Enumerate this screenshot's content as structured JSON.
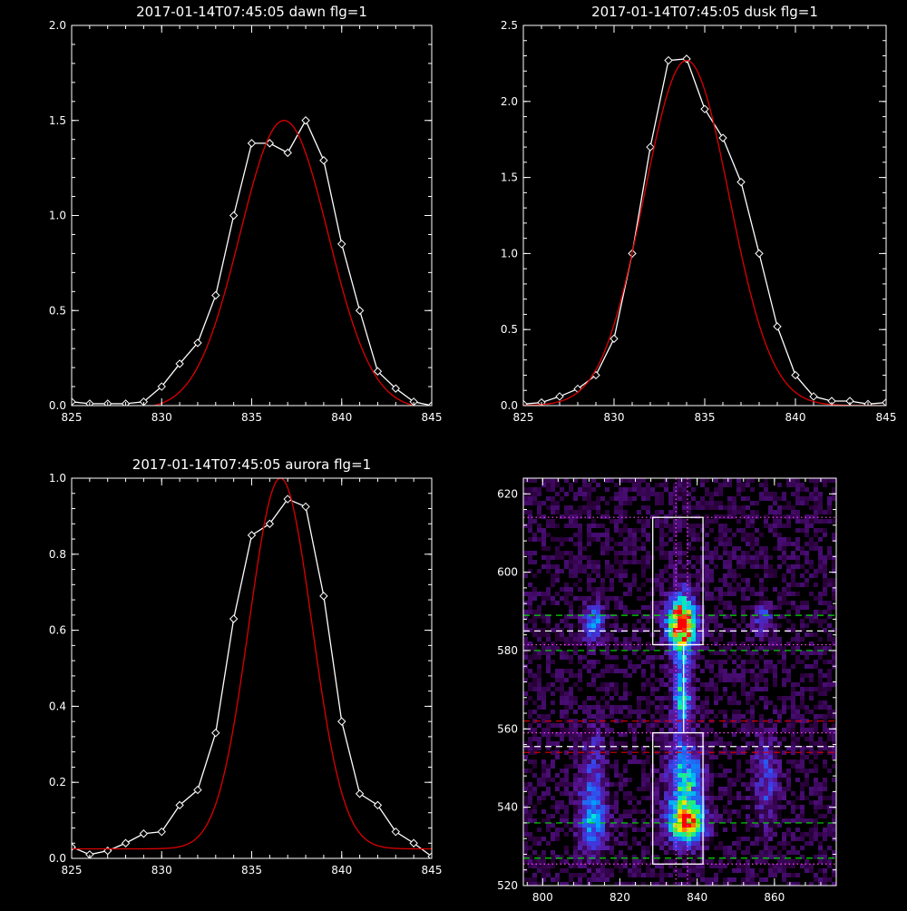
{
  "chart_data": [
    {
      "type": "line",
      "title": "2017-01-14T07:45:05 dawn flg=1",
      "xlim": [
        825,
        845
      ],
      "ylim": [
        0,
        2.0
      ],
      "xticks": [
        "825",
        "830",
        "835",
        "840",
        "845"
      ],
      "yticks": [
        "0.0",
        "0.5",
        "1.0",
        "1.5",
        "2.0"
      ],
      "grid": false,
      "series": [
        {
          "color": "#ffffff",
          "marker": "diamond",
          "x": [
            825,
            826,
            827,
            828,
            829,
            830,
            831,
            832,
            833,
            834,
            835,
            836,
            837,
            838,
            839,
            840,
            841,
            842,
            843,
            844,
            845
          ],
          "y": [
            0.02,
            0.01,
            0.01,
            0.01,
            0.02,
            0.1,
            0.22,
            0.33,
            0.58,
            1.0,
            1.38,
            1.38,
            1.33,
            1.5,
            1.29,
            0.85,
            0.5,
            0.18,
            0.09,
            0.02,
            0.0
          ]
        },
        {
          "color": "#dd0000",
          "type": "gaussian_fit",
          "amplitude": 1.52,
          "center": 836.8,
          "sigma": 2.45,
          "offset": -0.02
        }
      ]
    },
    {
      "type": "line",
      "title": "2017-01-14T07:45:05 dusk flg=1",
      "xlim": [
        825,
        845
      ],
      "ylim": [
        0,
        2.5
      ],
      "xticks": [
        "825",
        "830",
        "835",
        "840",
        "845"
      ],
      "yticks": [
        "0.0",
        "0.5",
        "1.0",
        "1.5",
        "2.0",
        "2.5"
      ],
      "grid": false,
      "series": [
        {
          "color": "#ffffff",
          "marker": "diamond",
          "x": [
            825,
            826,
            827,
            828,
            829,
            830,
            831,
            832,
            833,
            834,
            835,
            836,
            837,
            838,
            839,
            840,
            841,
            842,
            843,
            844,
            845
          ],
          "y": [
            0.01,
            0.02,
            0.06,
            0.11,
            0.2,
            0.44,
            1.0,
            1.7,
            2.27,
            2.28,
            1.95,
            1.76,
            1.47,
            1.0,
            0.52,
            0.2,
            0.06,
            0.03,
            0.03,
            0.01,
            0.02
          ]
        },
        {
          "color": "#dd0000",
          "type": "gaussian_fit",
          "amplitude": 2.27,
          "center": 834.0,
          "sigma": 2.35,
          "offset": 0.0
        }
      ]
    },
    {
      "type": "line",
      "title": "2017-01-14T07:45:05 aurora flg=1",
      "xlim": [
        825,
        845
      ],
      "ylim": [
        0,
        1.0
      ],
      "xticks": [
        "825",
        "830",
        "835",
        "840",
        "845"
      ],
      "yticks": [
        "0.0",
        "0.2",
        "0.4",
        "0.6",
        "0.8",
        "1.0"
      ],
      "grid": false,
      "series": [
        {
          "color": "#ffffff",
          "marker": "diamond",
          "x": [
            825,
            826,
            827,
            828,
            829,
            830,
            831,
            832,
            833,
            834,
            835,
            836,
            837,
            838,
            839,
            840,
            841,
            842,
            843,
            844,
            845
          ],
          "y": [
            0.03,
            0.01,
            0.02,
            0.04,
            0.065,
            0.07,
            0.14,
            0.18,
            0.33,
            0.63,
            0.85,
            0.88,
            0.945,
            0.925,
            0.69,
            0.36,
            0.17,
            0.14,
            0.07,
            0.04,
            0.005
          ]
        },
        {
          "color": "#dd0000",
          "type": "gaussian_fit",
          "amplitude": 0.975,
          "center": 836.6,
          "sigma": 1.75,
          "offset": 0.025
        }
      ]
    },
    {
      "type": "heatmap",
      "xlim": [
        795,
        876
      ],
      "ylim": [
        520,
        624
      ],
      "xticks": [
        "800",
        "820",
        "840",
        "860"
      ],
      "yticks": [
        "520",
        "540",
        "560",
        "580",
        "600",
        "620"
      ],
      "colormap": "rainbow",
      "blobs": [
        {
          "x": 836,
          "y": 587,
          "sx": 2.6,
          "sy": 4.0,
          "amp": 1.0
        },
        {
          "x": 836,
          "y": 578,
          "sx": 1.8,
          "sy": 12,
          "amp": 0.35
        },
        {
          "x": 837,
          "y": 536,
          "sx": 3.2,
          "sy": 3.5,
          "amp": 0.85
        },
        {
          "x": 837,
          "y": 546,
          "sx": 3.0,
          "sy": 7.0,
          "amp": 0.55
        },
        {
          "x": 836,
          "y": 567,
          "sx": 1.4,
          "sy": 3.5,
          "amp": 0.4
        },
        {
          "x": 813,
          "y": 587,
          "sx": 2.0,
          "sy": 3.0,
          "amp": 0.45
        },
        {
          "x": 813,
          "y": 537,
          "sx": 2.5,
          "sy": 6.0,
          "amp": 0.45
        },
        {
          "x": 813,
          "y": 552,
          "sx": 2.2,
          "sy": 6.0,
          "amp": 0.2
        },
        {
          "x": 857,
          "y": 588,
          "sx": 1.6,
          "sy": 3.0,
          "amp": 0.3
        },
        {
          "x": 858,
          "y": 547,
          "sx": 2.2,
          "sy": 8.0,
          "amp": 0.25
        }
      ],
      "boxes": [
        {
          "x0": 828.5,
          "x1": 841.5,
          "y0": 581.5,
          "y1": 614,
          "color": "#ffffff"
        },
        {
          "x0": 828.5,
          "x1": 841.5,
          "y0": 525.5,
          "y1": 559,
          "color": "#ffffff"
        }
      ],
      "vlines": [
        {
          "x": 834.5,
          "color": "#ff44ff",
          "style": "dotted"
        },
        {
          "x": 837.5,
          "color": "#ff44ff",
          "style": "dotted"
        }
      ],
      "hlines": [
        {
          "y": 614,
          "color": "#ff44ff",
          "style": "dotted"
        },
        {
          "y": 581.5,
          "color": "#ff44ff",
          "style": "dotted"
        },
        {
          "y": 559,
          "color": "#ff44ff",
          "style": "dotted"
        },
        {
          "y": 525.5,
          "color": "#ff44ff",
          "style": "dotted"
        },
        {
          "y": 589,
          "color": "#00dd00",
          "style": "dashed"
        },
        {
          "y": 580,
          "color": "#00dd00",
          "style": "dashed"
        },
        {
          "y": 536,
          "color": "#00dd00",
          "style": "dashed"
        },
        {
          "y": 527,
          "color": "#00dd00",
          "style": "dashed"
        },
        {
          "y": 585,
          "color": "#ffffff",
          "style": "dashed"
        },
        {
          "y": 555.5,
          "color": "#ffffff",
          "style": "dashed"
        },
        {
          "y": 562,
          "color": "#dd0000",
          "style": "dashed"
        },
        {
          "y": 554,
          "color": "#dd0000",
          "style": "dashed"
        }
      ]
    }
  ]
}
